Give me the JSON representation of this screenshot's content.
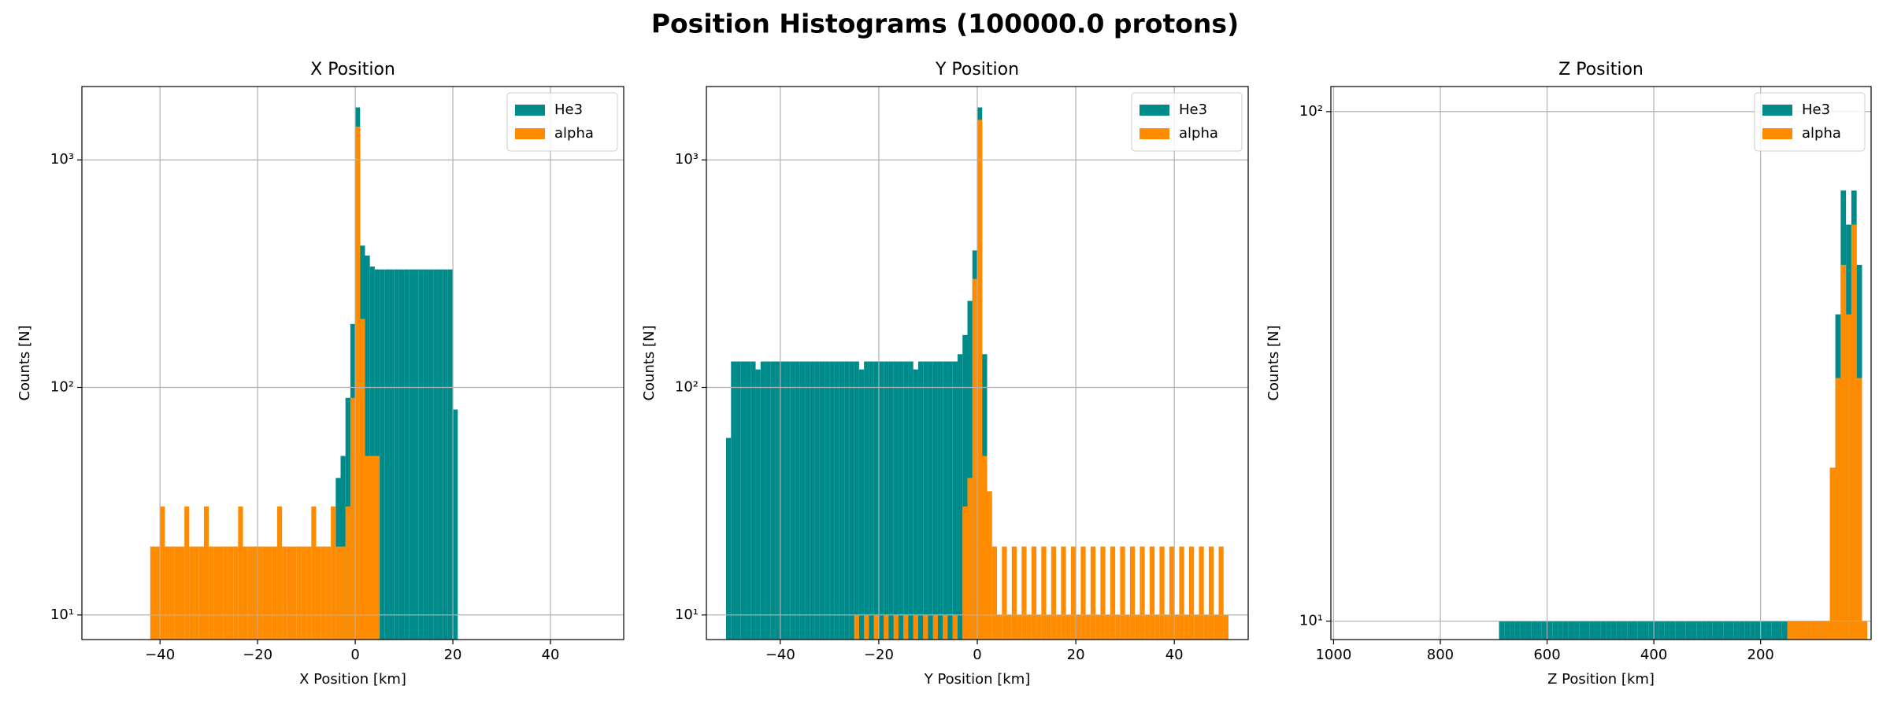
{
  "title": "Position Histograms (100000.0 protons)",
  "chart_data": [
    {
      "type": "histogram",
      "title": "X Position",
      "xlabel": "X Position [km]",
      "ylabel": "Counts [N]",
      "log_y": true,
      "grid": true,
      "legend": "upper right",
      "xlim": [
        -56,
        55
      ],
      "ylim": [
        7.8,
        2100
      ],
      "xticks": [
        {
          "value": -40,
          "label": "−40"
        },
        {
          "value": -20,
          "label": "−20"
        },
        0,
        20,
        40
      ],
      "yticks": [
        {
          "value": 10,
          "label": "10¹"
        },
        {
          "value": 100,
          "label": "10²"
        },
        {
          "value": 1000,
          "label": "10³"
        }
      ],
      "series": [
        {
          "name": "He3",
          "color": "#008b8b",
          "bins": [
            -4,
            -3,
            -2,
            -1,
            0,
            1,
            2,
            3,
            4,
            5,
            6,
            7,
            8,
            9,
            10,
            11,
            12,
            13,
            14,
            15,
            16,
            17,
            18,
            19,
            20,
            21
          ],
          "counts": [
            40,
            50,
            90,
            190,
            1700,
            420,
            380,
            340,
            330,
            330,
            330,
            330,
            330,
            330,
            330,
            330,
            330,
            330,
            330,
            330,
            330,
            330,
            330,
            330,
            80
          ]
        },
        {
          "name": "alpha",
          "color": "#ff8c00",
          "bins": [
            -42,
            -41,
            -40,
            -39,
            -38,
            -37,
            -36,
            -35,
            -34,
            -33,
            -32,
            -31,
            -30,
            -29,
            -28,
            -27,
            -26,
            -25,
            -24,
            -23,
            -22,
            -21,
            -20,
            -19,
            -18,
            -17,
            -16,
            -15,
            -14,
            -13,
            -12,
            -11,
            -10,
            -9,
            -8,
            -7,
            -6,
            -5,
            -4,
            -3,
            -2,
            -1,
            0,
            1,
            2,
            3,
            4,
            5
          ],
          "counts": [
            20,
            20,
            30,
            20,
            20,
            20,
            20,
            30,
            20,
            20,
            20,
            30,
            20,
            20,
            20,
            20,
            20,
            20,
            30,
            20,
            20,
            20,
            20,
            20,
            20,
            20,
            30,
            20,
            20,
            20,
            20,
            20,
            20,
            30,
            20,
            20,
            20,
            30,
            20,
            20,
            30,
            90,
            1400,
            200,
            50,
            50,
            50
          ]
        }
      ]
    },
    {
      "type": "histogram",
      "title": "Y Position",
      "xlabel": "Y Position [km]",
      "ylabel": "Counts [N]",
      "log_y": true,
      "grid": true,
      "legend": "upper right",
      "xlim": [
        -55,
        55
      ],
      "ylim": [
        7.8,
        2100
      ],
      "xticks": [
        {
          "value": -40,
          "label": "−40"
        },
        {
          "value": -20,
          "label": "−20"
        },
        0,
        20,
        40
      ],
      "yticks": [
        {
          "value": 10,
          "label": "10¹"
        },
        {
          "value": 100,
          "label": "10²"
        },
        {
          "value": 1000,
          "label": "10³"
        }
      ],
      "series": [
        {
          "name": "He3",
          "color": "#008b8b",
          "bins": [
            -51,
            -50,
            -49,
            -48,
            -47,
            -46,
            -45,
            -44,
            -43,
            -42,
            -41,
            -40,
            -39,
            -38,
            -37,
            -36,
            -35,
            -34,
            -33,
            -32,
            -31,
            -30,
            -29,
            -28,
            -27,
            -26,
            -25,
            -24,
            -23,
            -22,
            -21,
            -20,
            -19,
            -18,
            -17,
            -16,
            -15,
            -14,
            -13,
            -12,
            -11,
            -10,
            -9,
            -8,
            -7,
            -6,
            -5,
            -4,
            -3,
            -2,
            -1,
            0,
            1,
            2
          ],
          "counts": [
            60,
            130,
            130,
            130,
            130,
            130,
            120,
            130,
            130,
            130,
            130,
            130,
            130,
            130,
            130,
            130,
            130,
            130,
            130,
            130,
            130,
            130,
            130,
            130,
            130,
            130,
            130,
            120,
            130,
            130,
            130,
            130,
            130,
            130,
            130,
            130,
            130,
            130,
            120,
            130,
            130,
            130,
            130,
            130,
            130,
            130,
            130,
            140,
            170,
            240,
            400,
            1700,
            140
          ]
        },
        {
          "name": "alpha",
          "color": "#ff8c00",
          "bins": [
            -25,
            -24,
            -23,
            -22,
            -21,
            -20,
            -19,
            -18,
            -17,
            -16,
            -15,
            -14,
            -13,
            -12,
            -11,
            -10,
            -9,
            -8,
            -7,
            -6,
            -5,
            -4,
            -3,
            -2,
            -1,
            0,
            1,
            2,
            3,
            4,
            5,
            6,
            7,
            8,
            9,
            10,
            11,
            12,
            13,
            14,
            15,
            16,
            17,
            18,
            19,
            20,
            21,
            22,
            23,
            24,
            25,
            26,
            27,
            28,
            29,
            30,
            31,
            32,
            33,
            34,
            35,
            36,
            37,
            38,
            39,
            40,
            41,
            42,
            43,
            44,
            45,
            46,
            47,
            48,
            49,
            50,
            51
          ],
          "counts": [
            10,
            null,
            10,
            null,
            10,
            null,
            10,
            null,
            10,
            null,
            10,
            null,
            10,
            null,
            10,
            null,
            10,
            null,
            10,
            null,
            10,
            null,
            30,
            40,
            300,
            1500,
            50,
            35,
            20,
            10,
            20,
            10,
            20,
            10,
            20,
            10,
            20,
            10,
            20,
            10,
            20,
            10,
            20,
            10,
            20,
            10,
            20,
            10,
            20,
            10,
            20,
            10,
            20,
            10,
            20,
            10,
            20,
            10,
            20,
            10,
            20,
            10,
            20,
            10,
            20,
            10,
            20,
            10,
            20,
            10,
            20,
            10,
            20,
            10,
            20,
            10
          ]
        }
      ]
    },
    {
      "type": "histogram",
      "title": "Z Position",
      "xlabel": "Z Position [km]",
      "ylabel": "Counts [N]",
      "log_y": true,
      "grid": true,
      "legend": "upper right",
      "xlim": [
        1005,
        -7
      ],
      "ylim": [
        9.2,
        112
      ],
      "xticks": [
        1000,
        800,
        600,
        400,
        200
      ],
      "yticks": [
        {
          "value": 10,
          "label": "10¹"
        },
        {
          "value": 100,
          "label": "10²"
        }
      ],
      "series": [
        {
          "name": "He3",
          "color": "#008b8b",
          "bins": [
            10,
            20,
            30,
            40,
            50,
            60,
            70,
            80,
            90,
            100,
            110,
            120,
            130,
            140,
            150,
            160,
            170,
            180,
            190,
            200,
            210,
            220,
            230,
            240,
            250,
            260,
            270,
            280,
            290,
            300,
            310,
            320,
            330,
            340,
            350,
            360,
            370,
            380,
            390,
            400,
            410,
            420,
            430,
            440,
            450,
            460,
            470,
            480,
            490,
            500,
            510,
            520,
            530,
            540,
            550,
            560,
            570,
            580,
            590,
            600,
            610,
            620,
            630,
            640,
            650,
            660,
            670,
            680,
            690
          ],
          "counts": [
            50,
            70,
            60,
            70,
            40,
            20,
            10,
            10,
            10,
            10,
            10,
            10,
            10,
            10,
            10,
            10,
            10,
            10,
            10,
            10,
            10,
            10,
            10,
            10,
            10,
            10,
            10,
            10,
            10,
            10,
            10,
            10,
            10,
            10,
            10,
            10,
            10,
            10,
            10,
            10,
            10,
            10,
            10,
            10,
            10,
            10,
            10,
            10,
            10,
            10,
            10,
            10,
            10,
            10,
            10,
            10,
            10,
            10,
            10,
            10,
            10,
            10,
            10,
            10,
            10,
            10,
            10,
            10
          ]
        },
        {
          "name": "alpha",
          "color": "#ff8c00",
          "bins": [
            0,
            10,
            20,
            30,
            40,
            50,
            60,
            70,
            80,
            90,
            100,
            110,
            120,
            130,
            140,
            150
          ],
          "counts": [
            10,
            30,
            60,
            40,
            50,
            30,
            20,
            10,
            10,
            10,
            10,
            10,
            10,
            10,
            10
          ]
        }
      ]
    }
  ]
}
